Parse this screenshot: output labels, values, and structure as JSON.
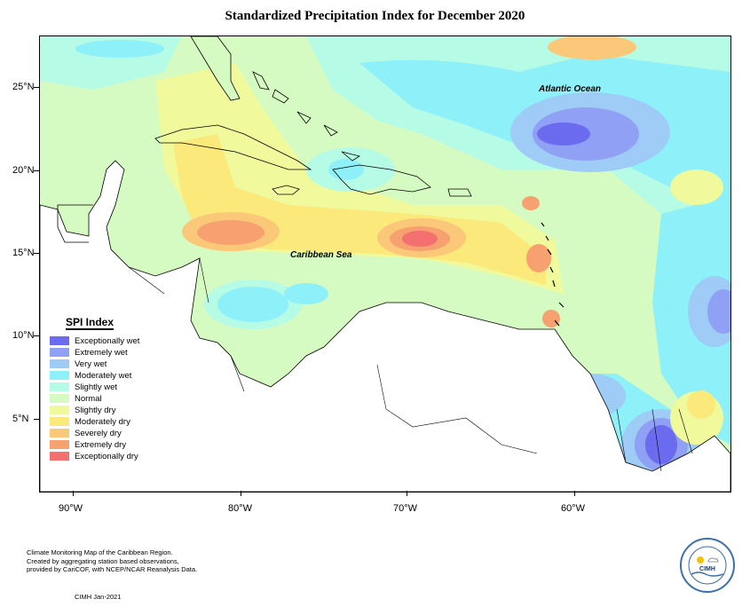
{
  "title": "Standardized Precipitation Index for December 2020",
  "latitude_labels": [
    "25°N",
    "20°N",
    "15°N",
    "10°N",
    "5°N"
  ],
  "longitude_labels": [
    "90°W",
    "80°W",
    "70°W",
    "60°W"
  ],
  "ocean_labels": {
    "atlantic": "Atlantic Ocean",
    "caribbean": "Caribbean Sea"
  },
  "legend": {
    "title": "SPI Index",
    "items": [
      {
        "label": "Exceptionally wet",
        "color": "#6b6bf0"
      },
      {
        "label": "Extremely wet",
        "color": "#8fa0f5"
      },
      {
        "label": "Very wet",
        "color": "#9fcbf7"
      },
      {
        "label": "Moderately wet",
        "color": "#8ef0f8"
      },
      {
        "label": "Slightly wet",
        "color": "#b6fbe6"
      },
      {
        "label": "Normal",
        "color": "#d6fbc2"
      },
      {
        "label": "Slightly dry",
        "color": "#f0fa9c"
      },
      {
        "label": "Moderately dry",
        "color": "#fbe97b"
      },
      {
        "label": "Severely dry",
        "color": "#fbc87a"
      },
      {
        "label": "Extremely dry",
        "color": "#f7a070"
      },
      {
        "label": "Exceptionally dry",
        "color": "#f47070"
      }
    ]
  },
  "credits": {
    "lines": [
      "Climate Monitoring Map of the Caribbean Region.",
      "Created by aggregating station based observations,",
      "provided by CariCOF, with NCEP/NCAR Reanalysis Data."
    ],
    "date": "CIMH Jan-2021"
  },
  "logo": {
    "text": "CIMH"
  }
}
